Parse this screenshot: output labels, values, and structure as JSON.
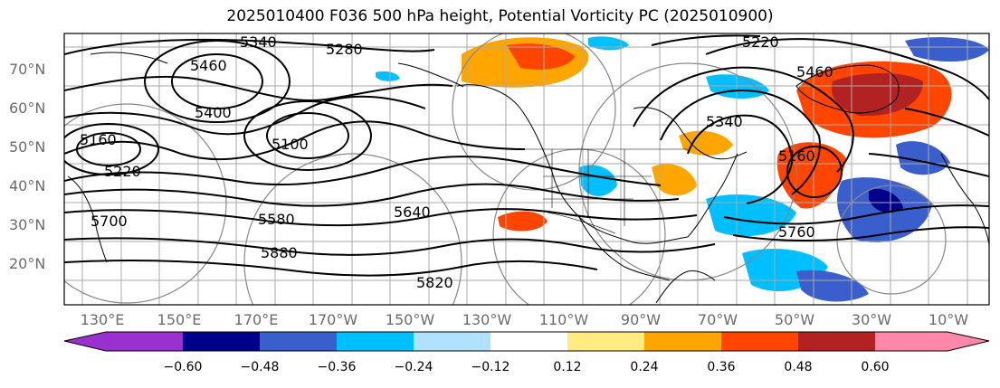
{
  "title": "2025010400 F036 500 hPa height, Potential Vorticity PC (2025010900)",
  "lat_labels": [
    "70°N",
    "60°N",
    "50°N",
    "40°N",
    "30°N",
    "20°N"
  ],
  "lon_labels": [
    "130°E",
    "150°E",
    "170°E",
    "170°W",
    "150°W",
    "130°W",
    "110°W",
    "90°W",
    "70°W",
    "50°W",
    "30°W",
    "10°W"
  ],
  "contour_labels": [
    "5340",
    "5280",
    "5220",
    "5460",
    "5400",
    "5100",
    "5160",
    "5220",
    "5700",
    "5580",
    "5640",
    "5880",
    "5820",
    "5760",
    "5460",
    "5340",
    "5160"
  ],
  "colorbar": {
    "colors": [
      "#9b30d0",
      "#00008b",
      "#3a5fcd",
      "#00bfff",
      "#b0e2ff",
      "#ffffff",
      "#ffeb80",
      "#ffa500",
      "#ff4500",
      "#b22222",
      "#ff88aa"
    ],
    "labels": [
      "−0.60",
      "−0.48",
      "−0.36",
      "−0.24",
      "−0.12",
      "0.12",
      "0.24",
      "0.36",
      "0.48",
      "0.60"
    ]
  }
}
